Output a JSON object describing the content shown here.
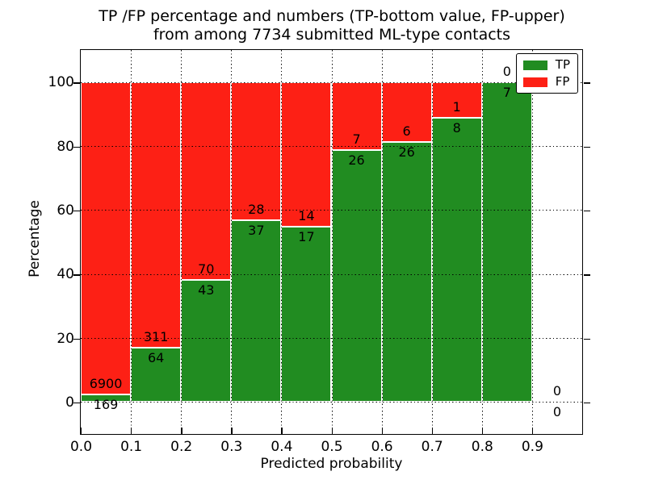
{
  "title_line1": "TP /FP percentage and numbers (TP-bottom value, FP-upper)",
  "title_line2": "from among 7734 submitted ML-type contacts",
  "axes": {
    "xlabel": "Predicted probability",
    "ylabel": "Percentage"
  },
  "legend": {
    "items": [
      {
        "label": "TP",
        "color": "#218c21"
      },
      {
        "label": "FP",
        "color": "#fd2015"
      }
    ]
  },
  "chart_data": {
    "type": "bar",
    "stacked": true,
    "normalized_to_percent": true,
    "title": "TP /FP percentage and numbers (TP-bottom value, FP-upper) from among 7734 submitted ML-type contacts",
    "xlabel": "Predicted probability",
    "ylabel": "Percentage",
    "xlim": [
      0.0,
      1.0
    ],
    "ylim": [
      -10,
      110
    ],
    "grid": true,
    "grid_style": "dotted",
    "legend_position": "upper right",
    "total_contacts": 7734,
    "xtick_values": [
      0.0,
      0.1,
      0.2,
      0.3,
      0.4,
      0.5,
      0.6,
      0.7,
      0.8,
      0.9
    ],
    "xtick_labels": [
      "0.0",
      "0.1",
      "0.2",
      "0.3",
      "0.4",
      "0.5",
      "0.6",
      "0.7",
      "0.8",
      "0.9"
    ],
    "ytick_values": [
      0,
      20,
      40,
      60,
      80,
      100
    ],
    "ytick_labels": [
      "0",
      "20",
      "40",
      "60",
      "80",
      "100"
    ],
    "bin_width": 0.1,
    "series": [
      {
        "name": "TP",
        "color": "#218c21",
        "counts": [
          169,
          64,
          43,
          37,
          17,
          26,
          26,
          8,
          7,
          0
        ]
      },
      {
        "name": "FP",
        "color": "#fd2015",
        "counts": [
          6900,
          311,
          70,
          28,
          14,
          7,
          6,
          1,
          0,
          0
        ]
      }
    ],
    "bins": [
      {
        "x0": 0.0,
        "x1": 0.1,
        "tp": 169,
        "fp": 6900,
        "tp_pct": 2.4
      },
      {
        "x0": 0.1,
        "x1": 0.2,
        "tp": 64,
        "fp": 311,
        "tp_pct": 17.1
      },
      {
        "x0": 0.2,
        "x1": 0.3,
        "tp": 43,
        "fp": 70,
        "tp_pct": 38.1
      },
      {
        "x0": 0.3,
        "x1": 0.4,
        "tp": 37,
        "fp": 28,
        "tp_pct": 56.9
      },
      {
        "x0": 0.4,
        "x1": 0.5,
        "tp": 17,
        "fp": 14,
        "tp_pct": 54.8
      },
      {
        "x0": 0.5,
        "x1": 0.6,
        "tp": 26,
        "fp": 7,
        "tp_pct": 78.8
      },
      {
        "x0": 0.6,
        "x1": 0.7,
        "tp": 26,
        "fp": 6,
        "tp_pct": 81.3
      },
      {
        "x0": 0.7,
        "x1": 0.8,
        "tp": 8,
        "fp": 1,
        "tp_pct": 88.9
      },
      {
        "x0": 0.8,
        "x1": 0.9,
        "tp": 7,
        "fp": 0,
        "tp_pct": 100.0
      },
      {
        "x0": 0.9,
        "x1": 1.0,
        "tp": 0,
        "fp": 0,
        "tp_pct": 0.0
      }
    ]
  }
}
